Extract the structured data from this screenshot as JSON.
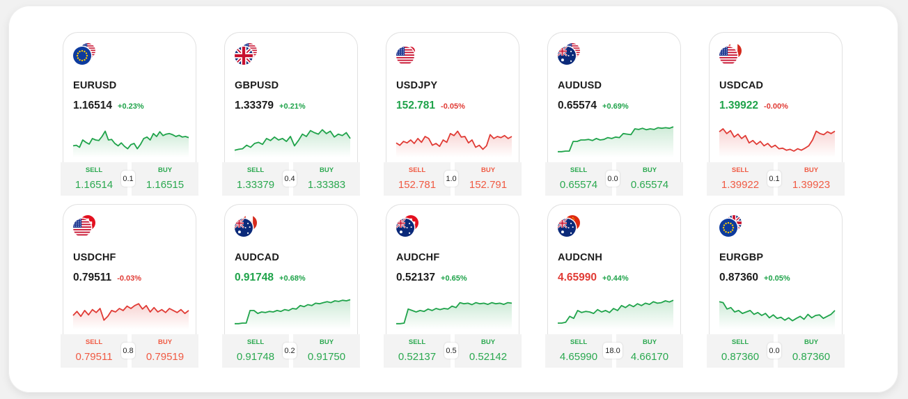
{
  "colors": {
    "up": "#1fa34a",
    "down": "#e03a34",
    "neutral": "#1c1c1c",
    "upLight": "#2aa84f",
    "downLight": "#f05a43"
  },
  "labels": {
    "sell": "SELL",
    "buy": "BUY"
  },
  "cards": [
    {
      "symbol": "EURUSD",
      "flags": [
        "eu",
        "us"
      ],
      "price": "1.16514",
      "price_color": "neutral",
      "change": "+0.23%",
      "change_dir": "up",
      "trend": "up",
      "spark": [
        0.3,
        0.32,
        0.25,
        0.5,
        0.42,
        0.36,
        0.55,
        0.5,
        0.48,
        0.62,
        0.8,
        0.5,
        0.52,
        0.38,
        0.3,
        0.4,
        0.28,
        0.2,
        0.34,
        0.38,
        0.2,
        0.35,
        0.55,
        0.6,
        0.5,
        0.72,
        0.62,
        0.78,
        0.65,
        0.7,
        0.72,
        0.68,
        0.62,
        0.66,
        0.6,
        0.62,
        0.58
      ],
      "sell": "1.16514",
      "buy": "1.16515",
      "spread": "0.1"
    },
    {
      "symbol": "GBPUSD",
      "flags": [
        "gb",
        "us"
      ],
      "price": "1.33379",
      "price_color": "neutral",
      "change": "+0.21%",
      "change_dir": "up",
      "trend": "up",
      "spark": [
        0.15,
        0.18,
        0.2,
        0.32,
        0.25,
        0.38,
        0.42,
        0.35,
        0.55,
        0.48,
        0.6,
        0.5,
        0.55,
        0.45,
        0.62,
        0.3,
        0.48,
        0.7,
        0.62,
        0.82,
        0.75,
        0.7,
        0.85,
        0.72,
        0.8,
        0.6,
        0.7,
        0.65,
        0.75,
        0.55
      ],
      "sell": "1.33379",
      "buy": "1.33383",
      "spread": "0.4"
    },
    {
      "symbol": "USDJPY",
      "flags": [
        "us",
        "jp"
      ],
      "price": "152.781",
      "price_color": "up",
      "change": "-0.05%",
      "change_dir": "down",
      "trend": "down",
      "spark": [
        0.4,
        0.32,
        0.45,
        0.4,
        0.5,
        0.38,
        0.55,
        0.42,
        0.62,
        0.55,
        0.32,
        0.38,
        0.28,
        0.5,
        0.42,
        0.72,
        0.65,
        0.8,
        0.6,
        0.62,
        0.4,
        0.5,
        0.25,
        0.32,
        0.18,
        0.3,
        0.68,
        0.55,
        0.62,
        0.58,
        0.65,
        0.55,
        0.62
      ],
      "sell": "152.781",
      "buy": "152.791",
      "spread": "1.0"
    },
    {
      "symbol": "AUDUSD",
      "flags": [
        "au",
        "us"
      ],
      "price": "0.65574",
      "price_color": "neutral",
      "change": "+0.69%",
      "change_dir": "up",
      "trend": "up",
      "spark": [
        0.1,
        0.1,
        0.12,
        0.12,
        0.45,
        0.45,
        0.5,
        0.5,
        0.52,
        0.48,
        0.55,
        0.5,
        0.52,
        0.58,
        0.55,
        0.6,
        0.58,
        0.72,
        0.7,
        0.68,
        0.88,
        0.86,
        0.9,
        0.85,
        0.88,
        0.86,
        0.92,
        0.9,
        0.92,
        0.9,
        0.95
      ],
      "sell": "0.65574",
      "buy": "0.65574",
      "spread": "0.0"
    },
    {
      "symbol": "USDCAD",
      "flags": [
        "us",
        "ca"
      ],
      "price": "1.39922",
      "price_color": "up",
      "change": "-0.00%",
      "change_dir": "down",
      "trend": "down",
      "spark": [
        0.78,
        0.88,
        0.72,
        0.82,
        0.6,
        0.7,
        0.55,
        0.65,
        0.4,
        0.48,
        0.35,
        0.45,
        0.3,
        0.38,
        0.25,
        0.32,
        0.2,
        0.22,
        0.15,
        0.18,
        0.12,
        0.2,
        0.15,
        0.22,
        0.3,
        0.5,
        0.8,
        0.72,
        0.68,
        0.78,
        0.72,
        0.8
      ],
      "sell": "1.39922",
      "buy": "1.39923",
      "spread": "0.1"
    },
    {
      "symbol": "USDCHF",
      "flags": [
        "us",
        "ch"
      ],
      "price": "0.79511",
      "price_color": "neutral",
      "change": "-0.03%",
      "change_dir": "down",
      "trend": "down",
      "spark": [
        0.38,
        0.52,
        0.35,
        0.55,
        0.4,
        0.58,
        0.48,
        0.62,
        0.22,
        0.35,
        0.55,
        0.5,
        0.62,
        0.55,
        0.7,
        0.62,
        0.72,
        0.78,
        0.6,
        0.72,
        0.5,
        0.65,
        0.5,
        0.58,
        0.48,
        0.62,
        0.55,
        0.48,
        0.58,
        0.45,
        0.55
      ],
      "sell": "0.79511",
      "buy": "0.79519",
      "spread": "0.8"
    },
    {
      "symbol": "AUDCAD",
      "flags": [
        "au",
        "ca"
      ],
      "price": "0.91748",
      "price_color": "up",
      "change": "+0.68%",
      "change_dir": "up",
      "trend": "up",
      "spark": [
        0.1,
        0.1,
        0.12,
        0.12,
        0.55,
        0.55,
        0.45,
        0.5,
        0.48,
        0.52,
        0.5,
        0.55,
        0.52,
        0.58,
        0.55,
        0.62,
        0.6,
        0.72,
        0.68,
        0.75,
        0.72,
        0.8,
        0.78,
        0.82,
        0.85,
        0.82,
        0.88,
        0.86,
        0.9,
        0.88,
        0.92
      ],
      "sell": "0.91748",
      "buy": "0.91750",
      "spread": "0.2"
    },
    {
      "symbol": "AUDCHF",
      "flags": [
        "au",
        "ch"
      ],
      "price": "0.52137",
      "price_color": "neutral",
      "change": "+0.65%",
      "change_dir": "up",
      "trend": "up",
      "spark": [
        0.1,
        0.1,
        0.12,
        0.6,
        0.55,
        0.5,
        0.55,
        0.52,
        0.6,
        0.55,
        0.62,
        0.58,
        0.62,
        0.6,
        0.7,
        0.65,
        0.82,
        0.78,
        0.8,
        0.75,
        0.82,
        0.78,
        0.8,
        0.76,
        0.82,
        0.78,
        0.8,
        0.76,
        0.82,
        0.8
      ],
      "sell": "0.52137",
      "buy": "0.52142",
      "spread": "0.5"
    },
    {
      "symbol": "AUDCNH",
      "flags": [
        "au",
        "cn"
      ],
      "price": "4.65990",
      "price_color": "down",
      "change": "+0.44%",
      "change_dir": "up",
      "trend": "up",
      "spark": [
        0.12,
        0.12,
        0.15,
        0.35,
        0.28,
        0.55,
        0.48,
        0.52,
        0.5,
        0.45,
        0.58,
        0.5,
        0.55,
        0.48,
        0.62,
        0.55,
        0.72,
        0.65,
        0.75,
        0.68,
        0.78,
        0.72,
        0.8,
        0.76,
        0.85,
        0.8,
        0.82,
        0.88,
        0.84,
        0.9
      ],
      "sell": "4.65990",
      "buy": "4.66170",
      "spread": "18.0"
    },
    {
      "symbol": "EURGBP",
      "flags": [
        "eu",
        "gb"
      ],
      "price": "0.87360",
      "price_color": "neutral",
      "change": "+0.05%",
      "change_dir": "up",
      "trend": "up",
      "spark": [
        0.85,
        0.82,
        0.6,
        0.65,
        0.5,
        0.55,
        0.45,
        0.5,
        0.55,
        0.42,
        0.48,
        0.38,
        0.45,
        0.3,
        0.4,
        0.28,
        0.32,
        0.22,
        0.3,
        0.2,
        0.28,
        0.35,
        0.25,
        0.42,
        0.3,
        0.38,
        0.4,
        0.28,
        0.35,
        0.42,
        0.55
      ],
      "sell": "0.87360",
      "buy": "0.87360",
      "spread": "0.0"
    }
  ]
}
